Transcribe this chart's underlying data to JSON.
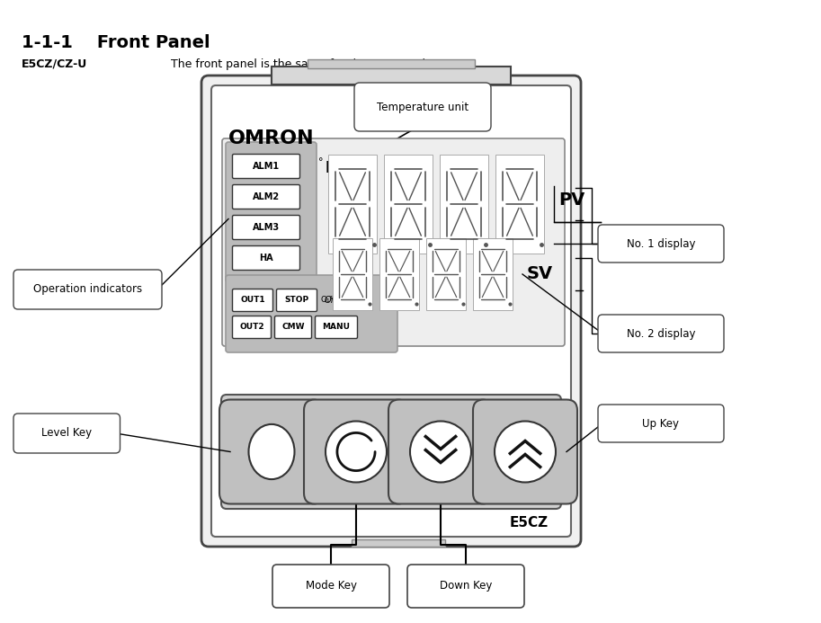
{
  "title": "1-1-1    Front Panel",
  "subtitle_label": "E5CZ/CZ-U",
  "subtitle_text": "The front panel is the same for the E5CZ and E5CZ-U.",
  "bg_color": "#ffffff",
  "line_color": "#000000",
  "device_brand": "OMRON",
  "device_model": "E5CZ",
  "pv_label": "PV",
  "sv_label": "SV",
  "indicator_labels_top": [
    "ALM1",
    "ALM2",
    "ALM3",
    "HA"
  ],
  "indicator_labels_bot_row1": [
    "OUT1",
    "STOP"
  ],
  "indicator_labels_bot_row2": [
    "OUT2",
    "CMW",
    "MANU"
  ],
  "ann_temp_unit": "Temperature unit",
  "ann_op_ind": "Operation indicators",
  "ann_no1": "No. 1 display",
  "ann_no2": "No. 2 display",
  "ann_level": "Level Key",
  "ann_mode": "Mode Key",
  "ann_down": "Down Key",
  "ann_up": "Up Key"
}
